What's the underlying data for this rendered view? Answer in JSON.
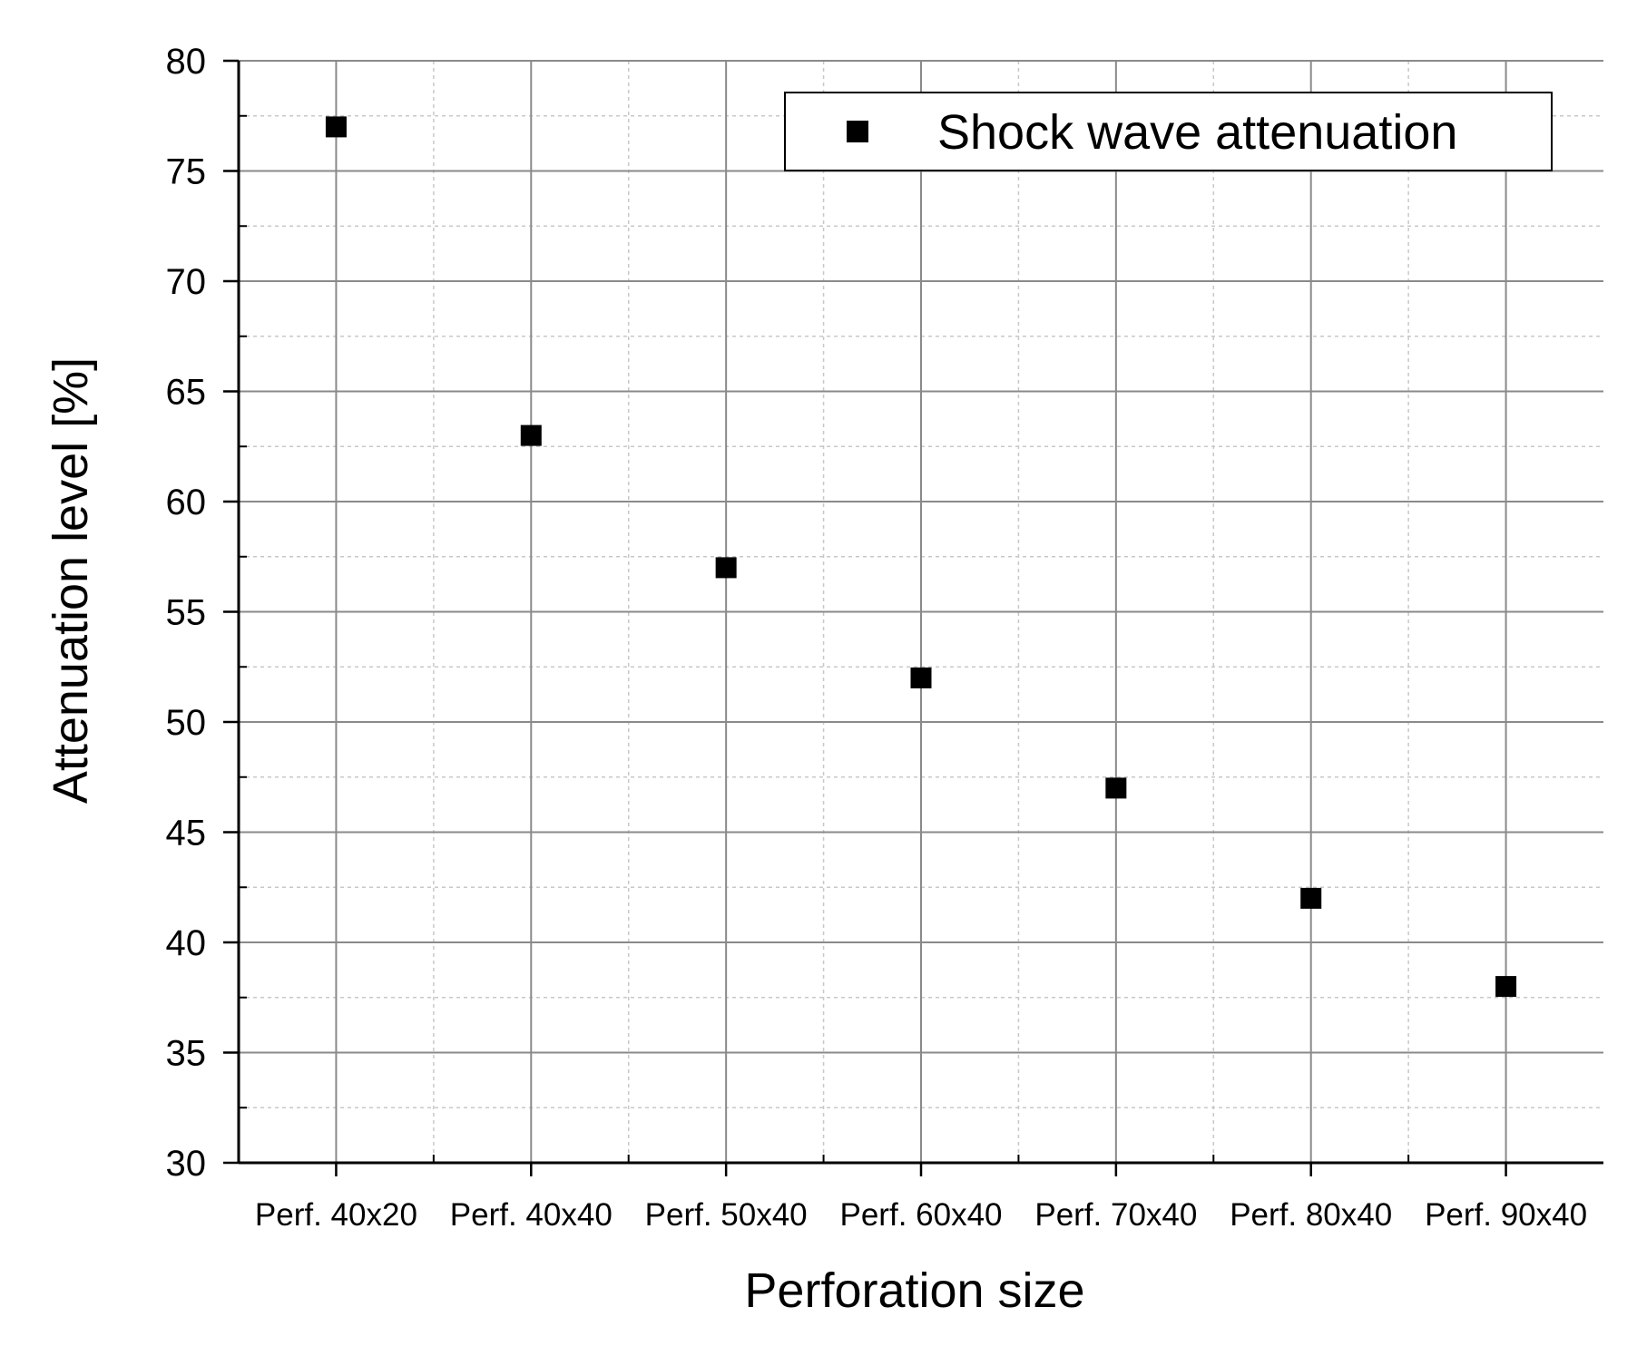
{
  "chart_data": {
    "type": "scatter",
    "title": "",
    "xlabel": "Perforation size",
    "ylabel": "Attenuation level [%]",
    "categories": [
      "Perf. 40x20",
      "Perf. 40x40",
      "Perf. 50x40",
      "Perf. 60x40",
      "Perf. 70x40",
      "Perf. 80x40",
      "Perf. 90x40"
    ],
    "series": [
      {
        "name": "Shock wave attenuation",
        "values": [
          77,
          63,
          57,
          52,
          47,
          42,
          38
        ],
        "marker": "square",
        "color": "#000000"
      }
    ],
    "ylim": [
      30,
      80
    ],
    "yticks": [
      30,
      35,
      40,
      45,
      50,
      55,
      60,
      65,
      70,
      75,
      80
    ],
    "grid": true,
    "legend_position": "top-right"
  }
}
